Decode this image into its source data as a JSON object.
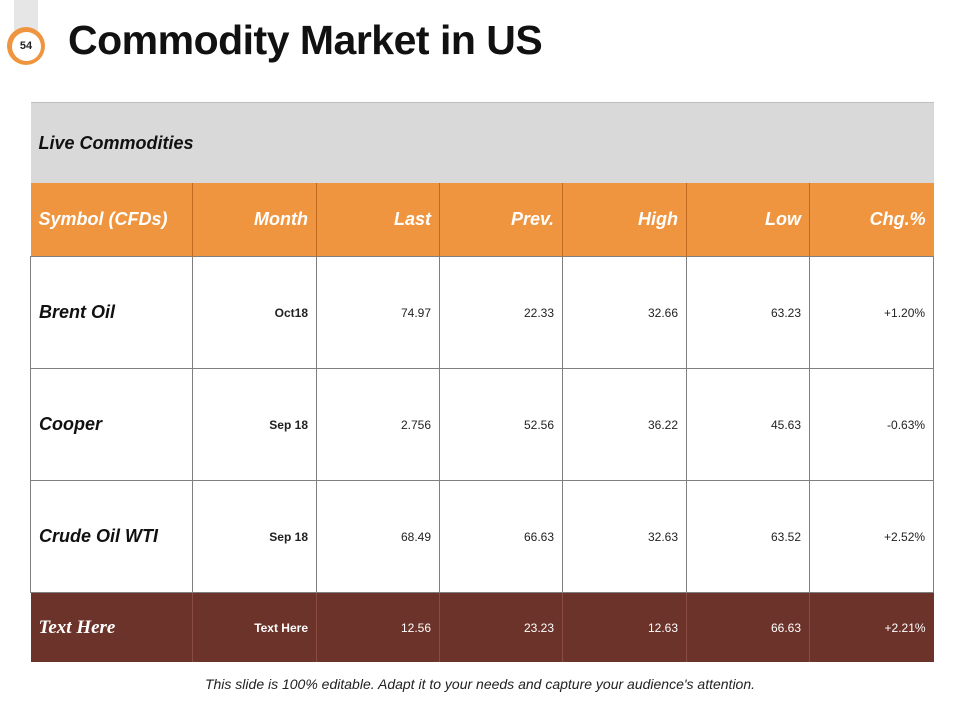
{
  "slide": {
    "number": "54",
    "title": "Commodity Market in US",
    "footer": "This slide is 100% editable. Adapt it to your needs and capture your audience's attention."
  },
  "table": {
    "caption": "Live Commodities",
    "headers": [
      "Symbol (CFDs)",
      "Month",
      "Last",
      "Prev.",
      "High",
      "Low",
      "Chg.%"
    ],
    "rows": [
      {
        "symbol": "Brent Oil",
        "month": "Oct18",
        "last": "74.97",
        "prev": "22.33",
        "high": "32.66",
        "low": "63.23",
        "chg": "+1.20%"
      },
      {
        "symbol": "Cooper",
        "month": "Sep 18",
        "last": "2.756",
        "prev": "52.56",
        "high": "36.22",
        "low": "45.63",
        "chg": "-0.63%"
      },
      {
        "symbol": "Crude Oil WTI",
        "month": "Sep 18",
        "last": "68.49",
        "prev": "66.63",
        "high": "32.63",
        "low": "63.52",
        "chg": "+2.52%"
      }
    ],
    "highlight_row": {
      "symbol": "Text Here",
      "month": "Text Here",
      "last": "12.56",
      "prev": "23.23",
      "high": "12.63",
      "low": "66.63",
      "chg": "+2.21%"
    }
  },
  "colors": {
    "accent_orange": "#f0953f",
    "header_gray": "#d9d9d9",
    "highlight_brown": "#6b3329"
  }
}
